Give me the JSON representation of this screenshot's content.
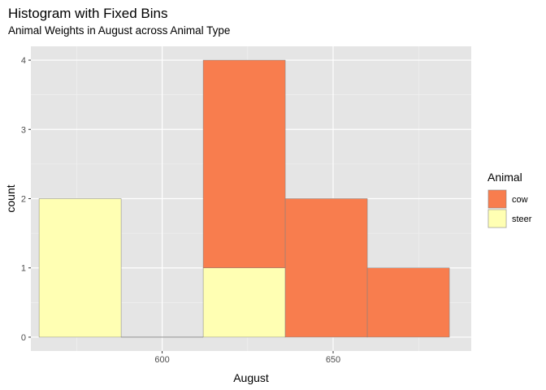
{
  "chart_data": {
    "type": "bar",
    "title": "Histogram with Fixed Bins",
    "subtitle": "Animal Weights in August across Animal Type",
    "xlabel": "August",
    "ylabel": "count",
    "xlim": [
      561.6,
      690.4
    ],
    "ylim": [
      -0.2,
      4.2
    ],
    "x_ticks": [
      600,
      650
    ],
    "y_ticks": [
      0,
      1,
      2,
      3,
      4
    ],
    "bins": [
      {
        "x0": 564,
        "x1": 588
      },
      {
        "x0": 588,
        "x1": 612
      },
      {
        "x0": 612,
        "x1": 636
      },
      {
        "x0": 636,
        "x1": 660
      },
      {
        "x0": 660,
        "x1": 684
      }
    ],
    "stacked": true,
    "series": [
      {
        "name": "cow",
        "color": "#F87D4E",
        "values": [
          0,
          0,
          3,
          2,
          1
        ]
      },
      {
        "name": "steer",
        "color": "#FFFFB3",
        "values": [
          2,
          0,
          1,
          0,
          0
        ]
      }
    ],
    "legend": {
      "title": "Animal",
      "position": "right"
    },
    "grid": true,
    "panel_color": "#E5E5E5"
  }
}
